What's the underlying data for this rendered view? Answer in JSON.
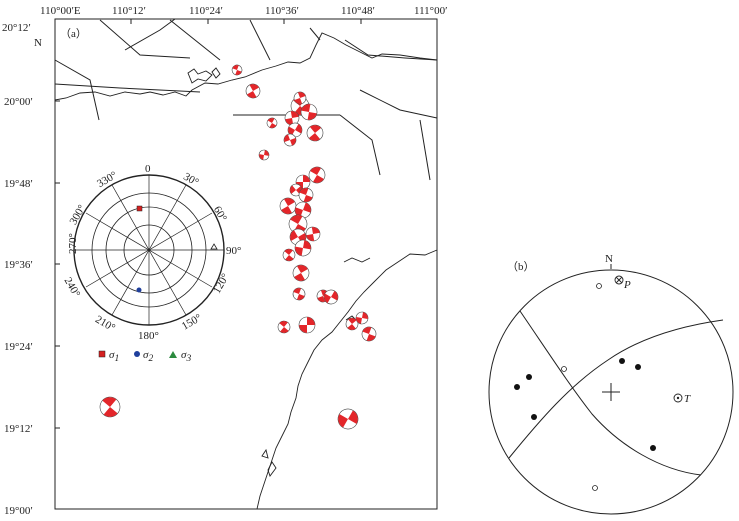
{
  "panel_a": {
    "tag": "（a）",
    "north_label": "N",
    "top_lon_ticks": [
      "110°00′E",
      "110°12′",
      "110°24′",
      "110°36′",
      "110°48′",
      "111°00′"
    ],
    "left_lat_ticks": [
      "20°12′",
      "20°00′",
      "19°48′",
      "19°36′",
      "19°24′",
      "19°12′",
      "19°00′"
    ],
    "rose": {
      "azimuth_labels": [
        "0",
        "30°",
        "60°",
        "90°",
        "120°",
        "150°",
        "180°",
        "210°",
        "240°",
        "270°",
        "300°",
        "330°"
      ]
    },
    "legend": [
      {
        "symbol": "square",
        "label": "σ",
        "sub": "1",
        "color": "#d42020"
      },
      {
        "symbol": "circle",
        "label": "σ",
        "sub": "2",
        "color": "#1f3f9c"
      },
      {
        "symbol": "triangle",
        "label": "σ",
        "sub": "3",
        "color": "#2b8a3e"
      }
    ],
    "beachball_colors": {
      "compression": "#e3262a",
      "dilatation": "#ffffff"
    }
  },
  "panel_b": {
    "tag": "（b）",
    "north_label": "N",
    "p_label": "P",
    "t_label": "T"
  }
}
